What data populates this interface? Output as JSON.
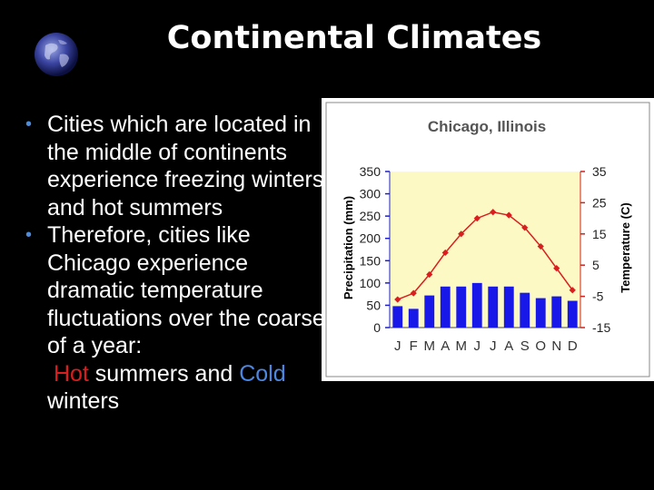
{
  "slide": {
    "title": "Continental Climates",
    "bullets": [
      "Cities which are located in the middle of continents experience freezing winters and hot summers",
      "Therefore, cities like Chicago experience dramatic temperature fluctuations over the coarse of a year:"
    ],
    "tail": {
      "hot": "Hot",
      "middle": " summers and ",
      "cold": "Cold",
      "end": "winters"
    },
    "bullet_glyph": "•",
    "colors": {
      "background": "#000000",
      "hot": "#d81e1e",
      "cold": "#4c87e0",
      "bullet": "#4f8bd6"
    },
    "icon": "globe-icon"
  },
  "chart_data": {
    "type": "bar+line",
    "title": "Chicago, Illinois",
    "categories": [
      "J",
      "F",
      "M",
      "A",
      "M",
      "J",
      "J",
      "A",
      "S",
      "O",
      "N",
      "D"
    ],
    "y_left": {
      "label": "Precipitation (mm)",
      "ticks": [
        0,
        50,
        100,
        150,
        200,
        250,
        300,
        350
      ],
      "range": [
        0,
        350
      ]
    },
    "y_right": {
      "label": "Temperature (C)",
      "ticks": [
        -15,
        -5,
        5,
        15,
        25,
        35
      ],
      "range": [
        -15,
        35
      ]
    },
    "precipitation": [
      48,
      42,
      72,
      92,
      92,
      100,
      92,
      92,
      78,
      66,
      70,
      60
    ],
    "temperature": [
      -6,
      -4,
      2,
      9,
      15,
      20,
      22,
      21,
      17,
      11,
      4,
      -3
    ],
    "colors": {
      "bars": "#1818e8",
      "line": "#d81e1e",
      "plot_bg": "#fdf9c4",
      "axis_left": "#2020c0",
      "axis_right": "#d81e1e"
    }
  }
}
